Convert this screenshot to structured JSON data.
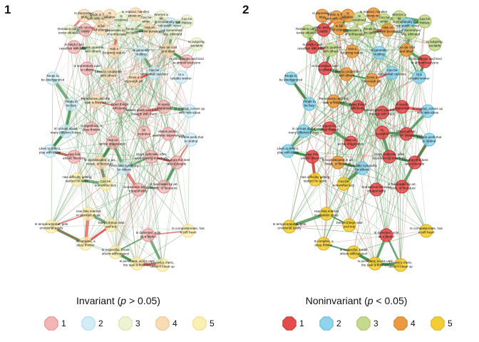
{
  "panels": [
    {
      "number": "1",
      "title": "Invariant",
      "title_stat_var": "p",
      "title_stat_rest": " > 0.05)",
      "faded": true,
      "legend": [
        {
          "label": "1",
          "color": "#f4b5b5",
          "border": "#e58a8a"
        },
        {
          "label": "2",
          "color": "#d3edf7",
          "border": "#a9d8ea"
        },
        {
          "label": "3",
          "color": "#eef3d3",
          "border": "#d3dfa6"
        },
        {
          "label": "4",
          "color": "#f8dcb6",
          "border": "#eec08a"
        },
        {
          "label": "5",
          "color": "#fbefb3",
          "border": "#efd980"
        }
      ]
    },
    {
      "number": "2",
      "title": "Noninvariant",
      "title_stat_var": "p",
      "title_stat_rest": " < 0.05)",
      "faded": false,
      "legend": [
        {
          "label": "1",
          "color": "#e44b4b",
          "border": "#c53535"
        },
        {
          "label": "2",
          "color": "#8fd3ec",
          "border": "#5fbadc"
        },
        {
          "label": "3",
          "color": "#c6d98e",
          "border": "#a6bf5f"
        },
        {
          "label": "4",
          "color": "#eb9a40",
          "border": "#cf7e24"
        },
        {
          "label": "5",
          "color": "#f3cd33",
          "border": "#d6ae14"
        }
      ]
    }
  ],
  "node_labels": [
    "Is depressed, blue",
    "Tends to find fault with others",
    "Is talkative",
    "Is reserved",
    "Is relaxed, handles stress well",
    "Can be tense",
    "Worries a lot",
    "Is emotionally stable, not easily upset",
    "Can be moody",
    "Remains calm in tense situations",
    "Gets nervous easily",
    "Is full of energy",
    "Generates a lot of enthusiasm",
    "Tends to be quiet",
    "Has an assertive personality",
    "Is sometimes shy, inhibited",
    "Is outgoing, sociable",
    "Is helpful and unselfish with others",
    "Starts quarrels with others",
    "Has a forgiving nature",
    "Is generally trusting",
    "Can be cold and aloof",
    "Is considerate and kind to almost everyone",
    "Is sometimes rude to others",
    "Likes to cooperate with others",
    "Does a thorough job",
    "Can be somewhat careless",
    "Is a reliable worker",
    "Tends to be disorganized",
    "Tends to be lazy",
    "Perseveres until the task is finished",
    "Does things efficiently",
    "Makes plans and follows through with them",
    "Is easily distracted",
    "Is original, comes up with new ideas",
    "Is curious about many different things",
    "Is ingenious, a deep thinker",
    "Has an active imagination",
    "Is inventive",
    "Values artistic, aesthetic experiences",
    "Prefers work that is routine",
    "Likes to reflect, play with ideas",
    "Has few artistic interests",
    "Is sophisticated in art, music, or literature",
    "Feels little sympathy for others",
    "Stays optimistic after experiencing a setback",
    "Assumes the best about people",
    "Has difficulty getting started on tasks",
    "Can be somewhat lazy",
    "Sometimes behaves irresponsibly",
    "Is fascinated by art, music, or literature",
    "Has little interest in abstract ideas",
    "Keeps things neat and tidy",
    "Is dominant, acts as a leader",
    "Is compassionate, has a soft heart",
    "Is temperamental, gets emotional easily",
    "Is complex, a deep thinker",
    "Is respectful, treats others with respect",
    "Is persistent, works until the task is finished",
    "Leaves a mess, doesn't clean up"
  ]
}
